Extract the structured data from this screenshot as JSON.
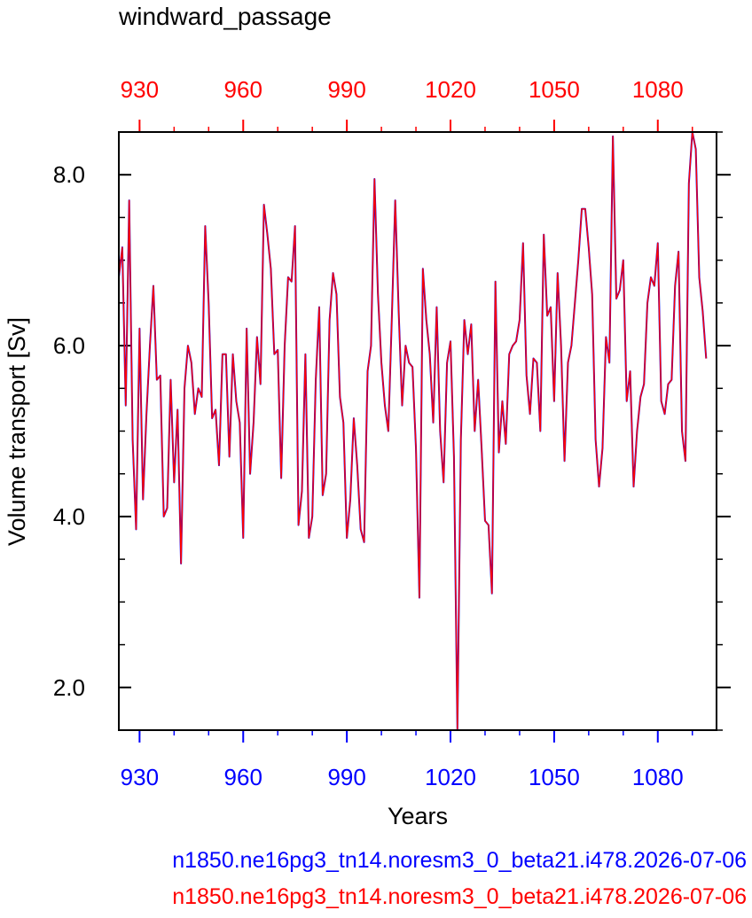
{
  "chart_data": {
    "type": "line",
    "title": "windward_passage",
    "xlabel": "Years",
    "ylabel": "Volume transport [Sv]",
    "xlim": [
      924,
      1097
    ],
    "ylim": [
      1.5,
      8.5
    ],
    "x_ticks": [
      930,
      960,
      990,
      1020,
      1050,
      1080
    ],
    "x_tick_labels": [
      "930",
      "960",
      "990",
      "1020",
      "1050",
      "1080"
    ],
    "y_ticks": [
      2.0,
      4.0,
      6.0,
      8.0
    ],
    "y_tick_labels": [
      "2.0",
      "4.0",
      "6.0",
      "8.0"
    ],
    "x_start": 924,
    "colors": {
      "bottom_axis": "#0000ff",
      "top_axis": "#ff0000",
      "series_1": "#0000ff",
      "series_2": "#ff0000"
    },
    "series": [
      {
        "name": "n1850.ne16pg3_tn14.noresm3_0_beta21.i478.2026-07-06",
        "values": [
          6.8,
          7.15,
          5.3,
          7.7,
          4.9,
          3.85,
          6.2,
          4.2,
          5.2,
          6.0,
          6.7,
          5.6,
          5.65,
          4.0,
          4.1,
          5.6,
          4.4,
          5.25,
          3.45,
          5.5,
          6.0,
          5.8,
          5.2,
          5.5,
          5.4,
          7.4,
          6.5,
          5.15,
          5.25,
          4.6,
          5.9,
          5.9,
          4.7,
          5.9,
          5.35,
          5.1,
          3.75,
          6.2,
          4.5,
          5.1,
          6.1,
          5.55,
          7.65,
          7.3,
          6.9,
          5.9,
          5.95,
          4.45,
          6.0,
          6.8,
          6.75,
          7.4,
          3.9,
          4.3,
          5.9,
          3.75,
          4.0,
          5.6,
          6.45,
          4.25,
          4.5,
          6.3,
          6.85,
          6.6,
          5.4,
          5.1,
          3.75,
          4.2,
          5.15,
          4.6,
          3.85,
          3.7,
          5.7,
          6.0,
          7.95,
          6.6,
          5.8,
          5.3,
          5.0,
          6.3,
          7.7,
          6.4,
          5.3,
          6.0,
          5.8,
          5.75,
          4.8,
          3.05,
          6.9,
          6.3,
          5.9,
          5.1,
          6.45,
          5.0,
          4.4,
          5.8,
          6.05,
          4.7,
          1.5,
          4.9,
          6.3,
          5.9,
          6.25,
          5.0,
          5.6,
          4.8,
          3.95,
          3.9,
          3.1,
          6.75,
          4.75,
          5.35,
          4.85,
          5.9,
          6.0,
          6.05,
          6.3,
          7.2,
          5.65,
          5.2,
          5.85,
          5.8,
          5.0,
          7.3,
          6.35,
          6.45,
          5.35,
          6.85,
          6.0,
          4.65,
          5.8,
          6.0,
          6.5,
          7.0,
          7.6,
          7.6,
          7.15,
          6.6,
          4.9,
          4.35,
          4.8,
          6.1,
          5.8,
          8.45,
          6.55,
          6.65,
          7.0,
          5.35,
          5.7,
          4.35,
          5.0,
          5.4,
          5.55,
          6.5,
          6.8,
          6.7,
          7.2,
          5.35,
          5.2,
          5.55,
          5.6,
          6.7,
          7.1,
          5.0,
          4.65,
          7.9,
          8.5,
          8.3,
          6.8,
          6.4,
          5.85
        ]
      },
      {
        "name": "n1850.ne16pg3_tn14.noresm3_0_beta21.i478.2026-07-06",
        "values": [
          6.8,
          7.15,
          5.3,
          7.7,
          4.9,
          3.85,
          6.2,
          4.2,
          5.2,
          6.0,
          6.7,
          5.6,
          5.65,
          4.0,
          4.1,
          5.6,
          4.4,
          5.25,
          3.45,
          5.5,
          6.0,
          5.8,
          5.2,
          5.5,
          5.4,
          7.4,
          6.5,
          5.15,
          5.25,
          4.6,
          5.9,
          5.9,
          4.7,
          5.9,
          5.35,
          5.1,
          3.75,
          6.2,
          4.5,
          5.1,
          6.1,
          5.55,
          7.65,
          7.3,
          6.9,
          5.9,
          5.95,
          4.45,
          6.0,
          6.8,
          6.75,
          7.4,
          3.9,
          4.3,
          5.9,
          3.75,
          4.0,
          5.6,
          6.45,
          4.25,
          4.5,
          6.3,
          6.85,
          6.6,
          5.4,
          5.1,
          3.75,
          4.2,
          5.15,
          4.6,
          3.85,
          3.7,
          5.7,
          6.0,
          7.95,
          6.6,
          5.8,
          5.3,
          5.0,
          6.3,
          7.7,
          6.4,
          5.3,
          6.0,
          5.8,
          5.75,
          4.8,
          3.05,
          6.9,
          6.3,
          5.9,
          5.1,
          6.45,
          5.0,
          4.4,
          5.8,
          6.05,
          4.7,
          1.5,
          4.9,
          6.3,
          5.9,
          6.25,
          5.0,
          5.6,
          4.8,
          3.95,
          3.9,
          3.1,
          6.75,
          4.75,
          5.35,
          4.85,
          5.9,
          6.0,
          6.05,
          6.3,
          7.2,
          5.65,
          5.2,
          5.85,
          5.8,
          5.0,
          7.3,
          6.35,
          6.45,
          5.35,
          6.85,
          6.0,
          4.65,
          5.8,
          6.0,
          6.5,
          7.0,
          7.6,
          7.6,
          7.15,
          6.6,
          4.9,
          4.35,
          4.8,
          6.1,
          5.8,
          8.45,
          6.55,
          6.65,
          7.0,
          5.35,
          5.7,
          4.35,
          5.0,
          5.4,
          5.55,
          6.5,
          6.8,
          6.7,
          7.2,
          5.35,
          5.2,
          5.55,
          5.6,
          6.7,
          7.1,
          5.0,
          4.65,
          7.9,
          8.5,
          8.3,
          6.8,
          6.4,
          5.85
        ]
      }
    ]
  }
}
